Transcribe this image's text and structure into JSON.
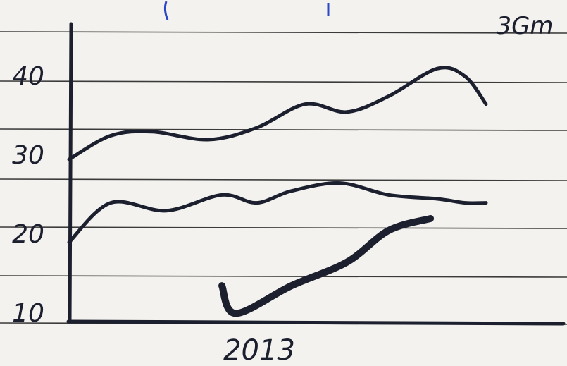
{
  "chart_data": {
    "type": "line",
    "medium": "hand-drawn on ruled notebook paper",
    "title": "",
    "xlabel": "",
    "ylabel": "",
    "x_tick_labels": [
      "2013"
    ],
    "y_ticks": [
      10,
      20,
      30,
      40
    ],
    "y_tick_labels": [
      "10",
      "20",
      "30",
      "40"
    ],
    "ylim": [
      10,
      42
    ],
    "annotations": [
      {
        "text": "3Gm",
        "position": "top-right"
      }
    ],
    "grid": true,
    "legend": "none",
    "series": [
      {
        "color": "#1b1f2e",
        "x": [
          0,
          0.6,
          1.2,
          2.0,
          2.7,
          3.4,
          4.0,
          4.6,
          5.3,
          5.7,
          6.0
        ],
        "values": [
          30,
          33,
          33.5,
          32.5,
          34,
          37,
          36,
          38,
          41.5,
          40.5,
          37
        ]
      },
      {
        "color": "#1b1f2e",
        "x": [
          0,
          0.6,
          1.4,
          2.2,
          2.7,
          3.2,
          3.9,
          4.6,
          5.3,
          5.7,
          6.0
        ],
        "values": [
          19.5,
          24.5,
          23.5,
          25.5,
          24.5,
          26,
          27,
          25.5,
          25,
          24.5,
          24.5
        ]
      },
      {
        "color": "#e43a4a",
        "x": [
          2.2,
          2.4,
          3.2,
          4.0,
          4.6,
          5.2
        ],
        "values": [
          14,
          10.5,
          14,
          17,
          21,
          22.5
        ]
      }
    ]
  }
}
